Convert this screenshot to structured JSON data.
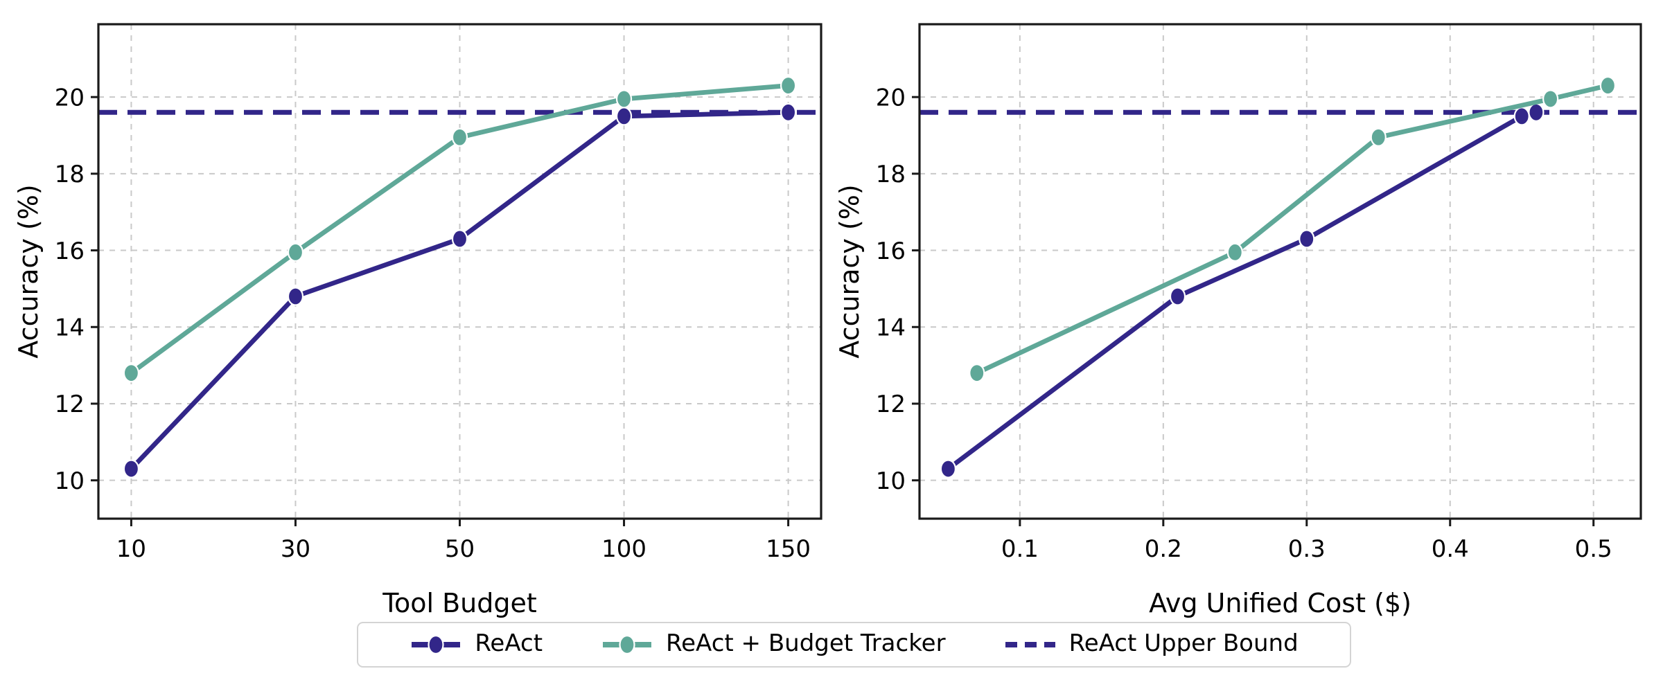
{
  "figure": {
    "background": "#ffffff"
  },
  "colors": {
    "react": "#322689",
    "tracker": "#5FA898",
    "grid": "#c9c9c9",
    "spine": "#1a1a1a",
    "text": "#000000",
    "legend_border": "#d4d4d4"
  },
  "legend": {
    "position": "bottom-center",
    "items": [
      {
        "label": "ReAct",
        "style": "solid-marker",
        "color": "#322689"
      },
      {
        "label": "ReAct + Budget Tracker",
        "style": "solid-marker",
        "color": "#5FA898"
      },
      {
        "label": "ReAct Upper Bound",
        "style": "dashed",
        "color": "#322689"
      }
    ]
  },
  "chart_data": [
    {
      "type": "line",
      "title": "",
      "xlabel": "Tool Budget",
      "ylabel": "Accuracy (%)",
      "x_scale": "even",
      "x_ticks": [
        10,
        30,
        50,
        100,
        150
      ],
      "y_ticks": [
        10,
        12,
        14,
        16,
        18,
        20
      ],
      "ylim": [
        9.0,
        21.9
      ],
      "grid": true,
      "series": [
        {
          "name": "ReAct",
          "color": "#322689",
          "x": [
            10,
            30,
            50,
            100,
            150
          ],
          "y": [
            10.3,
            14.8,
            16.3,
            19.5,
            19.6
          ]
        },
        {
          "name": "ReAct + Budget Tracker",
          "color": "#5FA898",
          "x": [
            10,
            30,
            50,
            100,
            150
          ],
          "y": [
            12.8,
            15.95,
            18.95,
            19.95,
            20.3
          ]
        }
      ],
      "hline": {
        "name": "ReAct Upper Bound",
        "y": 19.6,
        "color": "#322689",
        "style": "dashed"
      }
    },
    {
      "type": "line",
      "title": "",
      "xlabel": "Avg Unified Cost ($)",
      "ylabel": "Accuracy (%)",
      "x_scale": "linear",
      "x_ticks": [
        0.1,
        0.2,
        0.3,
        0.4,
        0.5
      ],
      "xlim": [
        0.03,
        0.533
      ],
      "y_ticks": [
        10,
        12,
        14,
        16,
        18,
        20
      ],
      "ylim": [
        9.0,
        21.9
      ],
      "grid": true,
      "series": [
        {
          "name": "ReAct",
          "color": "#322689",
          "x": [
            0.05,
            0.21,
            0.3,
            0.45,
            0.46
          ],
          "y": [
            10.3,
            14.8,
            16.3,
            19.5,
            19.6
          ]
        },
        {
          "name": "ReAct + Budget Tracker",
          "color": "#5FA898",
          "x": [
            0.07,
            0.25,
            0.35,
            0.47,
            0.51
          ],
          "y": [
            12.8,
            15.95,
            18.95,
            19.95,
            20.3
          ]
        }
      ],
      "hline": {
        "name": "ReAct Upper Bound",
        "y": 19.6,
        "color": "#322689",
        "style": "dashed"
      }
    }
  ]
}
